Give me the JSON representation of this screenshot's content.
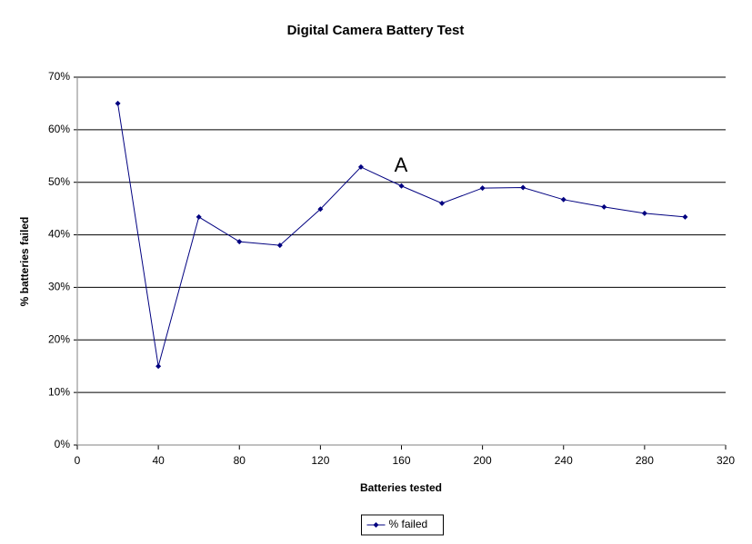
{
  "chart_data": {
    "type": "line",
    "title": "Digital Camera Battery Test",
    "xlabel": "Batteries tested",
    "ylabel": "% batteries failed",
    "annotations": [
      "A"
    ],
    "x": [
      20,
      40,
      60,
      80,
      100,
      120,
      140,
      160,
      180,
      200,
      220,
      240,
      260,
      280,
      300
    ],
    "series": [
      {
        "name": "% failed",
        "color": "#000080",
        "values": [
          65,
          15,
          43.4,
          38.7,
          38,
          44.9,
          52.9,
          49.3,
          46,
          48.9,
          49,
          46.7,
          45.3,
          44.1,
          43.4
        ]
      }
    ],
    "xlim": [
      0,
      320
    ],
    "xticks": [
      0,
      40,
      80,
      120,
      160,
      200,
      240,
      280,
      320
    ],
    "ylim": [
      0,
      70
    ],
    "yticks": [
      {
        "value": 0,
        "label": "0%"
      },
      {
        "value": 10,
        "label": "10%"
      },
      {
        "value": 20,
        "label": "20%"
      },
      {
        "value": 30,
        "label": "30%"
      },
      {
        "value": 40,
        "label": "40%"
      },
      {
        "value": 50,
        "label": "50%"
      },
      {
        "value": 60,
        "label": "60%"
      },
      {
        "value": 70,
        "label": "70%"
      }
    ],
    "grid": true,
    "legend": "bottom"
  }
}
